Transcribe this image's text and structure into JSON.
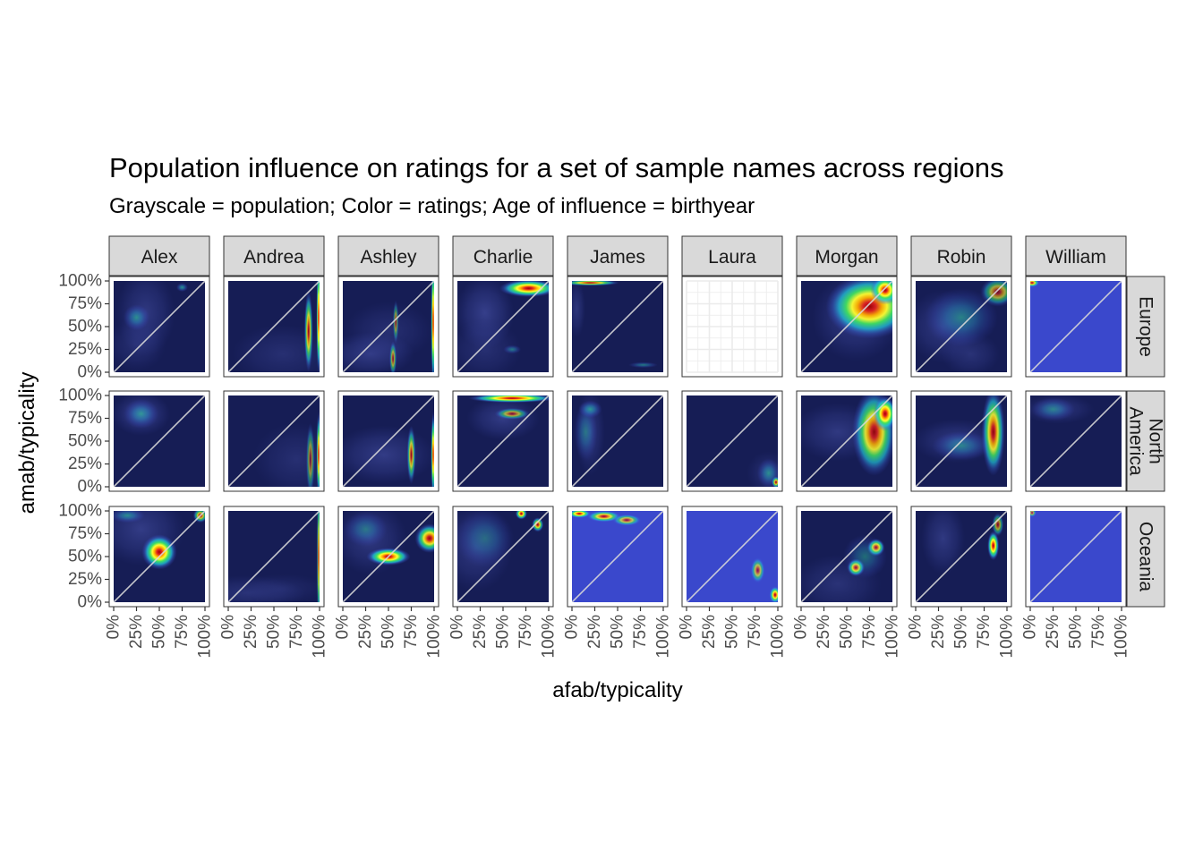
{
  "chart_data": {
    "type": "heatmap",
    "title": "Population influence on ratings for a set of sample names across regions",
    "subtitle": "Grayscale = population; Color = ratings; Age of influence = birthyear",
    "xlabel": "afab/typicality",
    "ylabel": "amab/typicality",
    "xlim": [
      0,
      1
    ],
    "ylim": [
      0,
      1
    ],
    "tick_values": [
      0,
      0.25,
      0.5,
      0.75,
      1
    ],
    "tick_labels": [
      "0%",
      "25%",
      "50%",
      "75%",
      "100%"
    ],
    "columns": [
      "Alex",
      "Andrea",
      "Ashley",
      "Charlie",
      "James",
      "Laura",
      "Morgan",
      "Robin",
      "William"
    ],
    "rows": [
      "Europe",
      "North America",
      "Oceania"
    ],
    "row_label_lines": [
      [
        "Europe"
      ],
      [
        "North",
        "America"
      ],
      [
        "Oceania"
      ]
    ],
    "reference_line": "y = x",
    "colors": {
      "panel_bg": "#161d55",
      "saturated_bg": "#3a48cc",
      "strip_fill": "#d9d9d9",
      "strip_border": "#333333",
      "diagonal": "#d9d9d9"
    },
    "panels": [
      {
        "name": "Alex",
        "region": "Europe",
        "saturated": false,
        "empty": false,
        "pop": [
          [
            0.35,
            0.65,
            0.2,
            0.3,
            0.45
          ],
          [
            0.25,
            0.3,
            0.2,
            0.18,
            0.3
          ]
        ],
        "ratings": [
          [
            0.25,
            0.6,
            0.09,
            0.09,
            0.4
          ],
          [
            0.75,
            0.93,
            0.04,
            0.03,
            0.45
          ]
        ]
      },
      {
        "name": "Andrea",
        "region": "Europe",
        "saturated": false,
        "empty": false,
        "pop": [
          [
            0.6,
            0.2,
            0.35,
            0.2,
            0.3
          ]
        ],
        "ratings": [
          [
            0.88,
            0.45,
            0.03,
            0.28,
            0.8
          ],
          [
            0.99,
            0.6,
            0.015,
            0.4,
            1.0
          ]
        ]
      },
      {
        "name": "Ashley",
        "region": "Europe",
        "saturated": false,
        "empty": false,
        "pop": [
          [
            0.3,
            0.2,
            0.3,
            0.15,
            0.5
          ],
          [
            0.5,
            0.45,
            0.3,
            0.2,
            0.3
          ]
        ],
        "ratings": [
          [
            0.55,
            0.15,
            0.025,
            0.12,
            0.6
          ],
          [
            0.99,
            0.55,
            0.015,
            0.45,
            1.0
          ],
          [
            0.58,
            0.55,
            0.02,
            0.15,
            0.5
          ]
        ]
      },
      {
        "name": "Charlie",
        "region": "Europe",
        "saturated": false,
        "empty": false,
        "pop": [
          [
            0.3,
            0.65,
            0.2,
            0.25,
            0.55
          ],
          [
            0.3,
            0.25,
            0.25,
            0.2,
            0.3
          ]
        ],
        "ratings": [
          [
            0.78,
            0.92,
            0.2,
            0.06,
            1.0
          ],
          [
            0.6,
            0.25,
            0.06,
            0.03,
            0.35
          ]
        ]
      },
      {
        "name": "James",
        "region": "Europe",
        "saturated": false,
        "empty": false,
        "pop": [
          [
            0.05,
            0.7,
            0.06,
            0.2,
            0.4
          ]
        ],
        "ratings": [
          [
            0.2,
            0.98,
            0.2,
            0.02,
            0.85
          ],
          [
            0.78,
            0.08,
            0.1,
            0.02,
            0.35
          ]
        ]
      },
      {
        "name": "Laura",
        "region": "Europe",
        "saturated": false,
        "empty": true,
        "pop": [],
        "ratings": []
      },
      {
        "name": "Morgan",
        "region": "Europe",
        "saturated": false,
        "empty": false,
        "pop": [
          [
            0.6,
            0.6,
            0.3,
            0.3,
            0.5
          ]
        ],
        "ratings": [
          [
            0.75,
            0.72,
            0.3,
            0.22,
            0.95
          ],
          [
            0.92,
            0.9,
            0.1,
            0.1,
            1.0
          ]
        ]
      },
      {
        "name": "Robin",
        "region": "Europe",
        "saturated": false,
        "empty": false,
        "pop": [
          [
            0.3,
            0.5,
            0.25,
            0.25,
            0.45
          ],
          [
            0.6,
            0.2,
            0.2,
            0.15,
            0.35
          ]
        ],
        "ratings": [
          [
            0.5,
            0.6,
            0.25,
            0.2,
            0.35
          ],
          [
            0.9,
            0.88,
            0.12,
            0.1,
            0.6
          ]
        ]
      },
      {
        "name": "William",
        "region": "Europe",
        "saturated": true,
        "empty": false,
        "pop": [],
        "ratings": [
          [
            0.02,
            0.98,
            0.05,
            0.03,
            0.9
          ]
        ]
      },
      {
        "name": "Alex",
        "region": "North America",
        "saturated": false,
        "empty": false,
        "pop": [
          [
            0.3,
            0.8,
            0.2,
            0.15,
            0.55
          ]
        ],
        "ratings": [
          [
            0.3,
            0.8,
            0.12,
            0.1,
            0.4
          ]
        ]
      },
      {
        "name": "Andrea",
        "region": "North America",
        "saturated": false,
        "empty": false,
        "pop": [
          [
            0.75,
            0.3,
            0.3,
            0.25,
            0.3
          ]
        ],
        "ratings": [
          [
            0.9,
            0.3,
            0.03,
            0.25,
            0.5
          ],
          [
            0.99,
            0.35,
            0.015,
            0.3,
            0.9
          ]
        ]
      },
      {
        "name": "Ashley",
        "region": "North America",
        "saturated": false,
        "empty": false,
        "pop": [
          [
            0.45,
            0.35,
            0.35,
            0.2,
            0.5
          ]
        ],
        "ratings": [
          [
            0.75,
            0.35,
            0.03,
            0.2,
            0.75
          ],
          [
            0.99,
            0.35,
            0.015,
            0.3,
            1.0
          ]
        ]
      },
      {
        "name": "Charlie",
        "region": "North America",
        "saturated": false,
        "empty": false,
        "pop": [
          [
            0.5,
            0.75,
            0.25,
            0.15,
            0.5
          ]
        ],
        "ratings": [
          [
            0.6,
            0.97,
            0.3,
            0.03,
            1.0
          ],
          [
            0.6,
            0.8,
            0.12,
            0.04,
            0.6
          ]
        ]
      },
      {
        "name": "James",
        "region": "North America",
        "saturated": false,
        "empty": false,
        "pop": [
          [
            0.2,
            0.6,
            0.1,
            0.3,
            0.4
          ]
        ],
        "ratings": [
          [
            0.15,
            0.6,
            0.08,
            0.2,
            0.3
          ],
          [
            0.2,
            0.85,
            0.08,
            0.06,
            0.45
          ]
        ]
      },
      {
        "name": "Laura",
        "region": "North America",
        "saturated": false,
        "empty": false,
        "pop": [
          [
            0.9,
            0.15,
            0.15,
            0.15,
            0.3
          ]
        ],
        "ratings": [
          [
            0.9,
            0.15,
            0.08,
            0.1,
            0.4
          ],
          [
            0.98,
            0.05,
            0.03,
            0.04,
            0.8
          ]
        ]
      },
      {
        "name": "Morgan",
        "region": "North America",
        "saturated": false,
        "empty": false,
        "pop": [
          [
            0.4,
            0.6,
            0.3,
            0.2,
            0.45
          ]
        ],
        "ratings": [
          [
            0.8,
            0.6,
            0.15,
            0.3,
            0.85
          ],
          [
            0.92,
            0.8,
            0.08,
            0.12,
            1.0
          ]
        ]
      },
      {
        "name": "Robin",
        "region": "North America",
        "saturated": false,
        "empty": false,
        "pop": [
          [
            0.45,
            0.5,
            0.3,
            0.15,
            0.45
          ]
        ],
        "ratings": [
          [
            0.85,
            0.6,
            0.08,
            0.3,
            0.85
          ],
          [
            0.5,
            0.45,
            0.2,
            0.1,
            0.35
          ]
        ]
      },
      {
        "name": "William",
        "region": "North America",
        "saturated": false,
        "empty": false,
        "pop": [
          [
            0.3,
            0.85,
            0.25,
            0.1,
            0.4
          ]
        ],
        "ratings": [
          [
            0.25,
            0.85,
            0.15,
            0.08,
            0.35
          ]
        ]
      },
      {
        "name": "Alex",
        "region": "Oceania",
        "saturated": false,
        "empty": false,
        "pop": [
          [
            0.3,
            0.8,
            0.3,
            0.25,
            0.5
          ]
        ],
        "ratings": [
          [
            0.5,
            0.55,
            0.12,
            0.12,
            1.0
          ],
          [
            0.95,
            0.95,
            0.05,
            0.05,
            0.75
          ],
          [
            0.15,
            0.95,
            0.12,
            0.05,
            0.4
          ]
        ]
      },
      {
        "name": "Andrea",
        "region": "Oceania",
        "saturated": false,
        "empty": false,
        "pop": [
          [
            0.2,
            0.1,
            0.4,
            0.12,
            0.35
          ],
          [
            0.6,
            0.15,
            0.3,
            0.1,
            0.2
          ]
        ],
        "ratings": [
          [
            0.99,
            0.5,
            0.012,
            0.5,
            0.8
          ]
        ]
      },
      {
        "name": "Ashley",
        "region": "Oceania",
        "saturated": false,
        "empty": false,
        "pop": [
          [
            0.3,
            0.7,
            0.25,
            0.25,
            0.45
          ]
        ],
        "ratings": [
          [
            0.5,
            0.5,
            0.15,
            0.06,
            1.0
          ],
          [
            0.95,
            0.7,
            0.1,
            0.1,
            0.9
          ],
          [
            0.25,
            0.8,
            0.15,
            0.12,
            0.3
          ]
        ]
      },
      {
        "name": "Charlie",
        "region": "Oceania",
        "saturated": false,
        "empty": false,
        "pop": [
          [
            0.2,
            0.6,
            0.25,
            0.3,
            0.45
          ]
        ],
        "ratings": [
          [
            0.7,
            0.97,
            0.04,
            0.04,
            0.95
          ],
          [
            0.88,
            0.85,
            0.04,
            0.05,
            0.85
          ],
          [
            0.3,
            0.7,
            0.2,
            0.2,
            0.25
          ]
        ]
      },
      {
        "name": "James",
        "region": "Oceania",
        "saturated": true,
        "empty": false,
        "pop": [],
        "ratings": [
          [
            0.08,
            0.97,
            0.08,
            0.03,
            1.0
          ],
          [
            0.35,
            0.94,
            0.12,
            0.04,
            0.85
          ],
          [
            0.6,
            0.9,
            0.1,
            0.04,
            0.7
          ]
        ]
      },
      {
        "name": "Laura",
        "region": "Oceania",
        "saturated": true,
        "empty": false,
        "pop": [],
        "ratings": [
          [
            0.78,
            0.35,
            0.05,
            0.09,
            0.65
          ],
          [
            0.97,
            0.08,
            0.04,
            0.06,
            0.95
          ]
        ]
      },
      {
        "name": "Morgan",
        "region": "Oceania",
        "saturated": false,
        "empty": false,
        "pop": [
          [
            0.4,
            0.2,
            0.3,
            0.2,
            0.35
          ]
        ],
        "ratings": [
          [
            0.6,
            0.38,
            0.06,
            0.06,
            0.95
          ],
          [
            0.82,
            0.6,
            0.06,
            0.06,
            0.95
          ],
          [
            0.7,
            0.5,
            0.15,
            0.15,
            0.3
          ]
        ]
      },
      {
        "name": "Robin",
        "region": "Oceania",
        "saturated": false,
        "empty": false,
        "pop": [
          [
            0.3,
            0.7,
            0.15,
            0.25,
            0.45
          ]
        ],
        "ratings": [
          [
            0.85,
            0.62,
            0.04,
            0.1,
            1.0
          ],
          [
            0.9,
            0.85,
            0.04,
            0.08,
            0.6
          ]
        ]
      },
      {
        "name": "William",
        "region": "Oceania",
        "saturated": true,
        "empty": false,
        "pop": [],
        "ratings": [
          [
            0.02,
            0.98,
            0.03,
            0.03,
            0.6
          ]
        ]
      }
    ]
  }
}
